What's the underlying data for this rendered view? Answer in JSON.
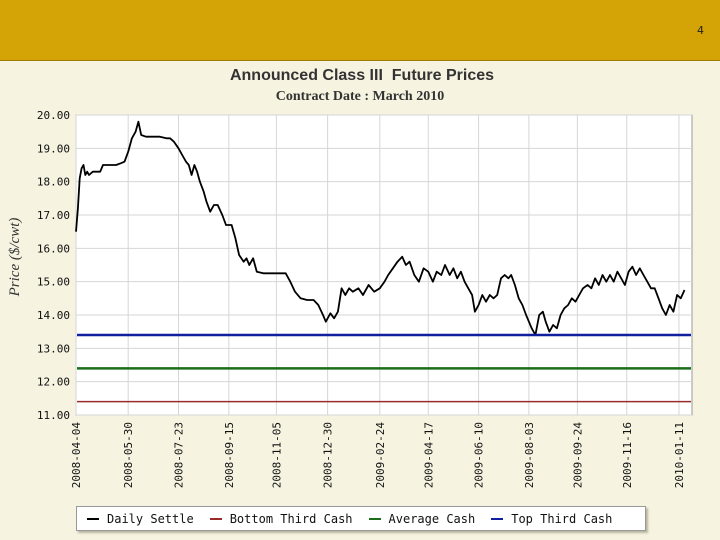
{
  "page": {
    "number": "4",
    "header_color": "#d4a406",
    "panel_color": "#f6f3e0"
  },
  "chart_data": {
    "type": "line",
    "title": "Announced Class III  Future Prices",
    "subtitle": "Contract Date : March 2010",
    "ylabel": "Price ($/cwt)",
    "xlabel": "",
    "ylim": [
      11.0,
      20.0
    ],
    "xlim": [
      "2008-04-04",
      "2010-01-25"
    ],
    "y_ticks": [
      "20.00",
      "19.00",
      "18.00",
      "17.00",
      "16.00",
      "15.00",
      "14.00",
      "13.00",
      "12.00",
      "11.00"
    ],
    "x_ticks": [
      "2008-04-04",
      "2008-05-30",
      "2008-07-23",
      "2008-09-15",
      "2008-11-05",
      "2008-12-30",
      "2009-02-24",
      "2009-04-17",
      "2009-06-10",
      "2009-08-03",
      "2009-09-24",
      "2009-11-16",
      "2010-01-11"
    ],
    "grid": true,
    "legend_position": "bottom",
    "series": [
      {
        "name": "Daily Settle",
        "color": "#000000",
        "style": "line",
        "points": [
          [
            "2008-04-04",
            16.5
          ],
          [
            "2008-04-06",
            17.2
          ],
          [
            "2008-04-08",
            18.1
          ],
          [
            "2008-04-10",
            18.4
          ],
          [
            "2008-04-12",
            18.5
          ],
          [
            "2008-04-14",
            18.2
          ],
          [
            "2008-04-16",
            18.3
          ],
          [
            "2008-04-18",
            18.2
          ],
          [
            "2008-04-22",
            18.3
          ],
          [
            "2008-04-30",
            18.3
          ],
          [
            "2008-05-03",
            18.5
          ],
          [
            "2008-05-10",
            18.5
          ],
          [
            "2008-05-17",
            18.5
          ],
          [
            "2008-05-22",
            18.55
          ],
          [
            "2008-05-26",
            18.6
          ],
          [
            "2008-05-30",
            18.9
          ],
          [
            "2008-06-03",
            19.3
          ],
          [
            "2008-06-07",
            19.5
          ],
          [
            "2008-06-10",
            19.8
          ],
          [
            "2008-06-13",
            19.4
          ],
          [
            "2008-06-18",
            19.35
          ],
          [
            "2008-06-25",
            19.35
          ],
          [
            "2008-07-03",
            19.35
          ],
          [
            "2008-07-10",
            19.3
          ],
          [
            "2008-07-14",
            19.3
          ],
          [
            "2008-07-18",
            19.2
          ],
          [
            "2008-07-23",
            19.0
          ],
          [
            "2008-07-27",
            18.8
          ],
          [
            "2008-07-31",
            18.6
          ],
          [
            "2008-08-03",
            18.5
          ],
          [
            "2008-08-06",
            18.2
          ],
          [
            "2008-08-09",
            18.5
          ],
          [
            "2008-08-12",
            18.3
          ],
          [
            "2008-08-15",
            18.0
          ],
          [
            "2008-08-19",
            17.7
          ],
          [
            "2008-08-22",
            17.4
          ],
          [
            "2008-08-26",
            17.1
          ],
          [
            "2008-08-30",
            17.3
          ],
          [
            "2008-09-03",
            17.3
          ],
          [
            "2008-09-08",
            17.0
          ],
          [
            "2008-09-12",
            16.7
          ],
          [
            "2008-09-18",
            16.7
          ],
          [
            "2008-09-22",
            16.3
          ],
          [
            "2008-09-26",
            15.8
          ],
          [
            "2008-10-01",
            15.6
          ],
          [
            "2008-10-04",
            15.7
          ],
          [
            "2008-10-07",
            15.5
          ],
          [
            "2008-10-11",
            15.7
          ],
          [
            "2008-10-15",
            15.3
          ],
          [
            "2008-10-22",
            15.25
          ],
          [
            "2008-10-30",
            15.25
          ],
          [
            "2008-11-08",
            15.25
          ],
          [
            "2008-11-15",
            15.25
          ],
          [
            "2008-11-20",
            15.0
          ],
          [
            "2008-11-25",
            14.7
          ],
          [
            "2008-12-01",
            14.5
          ],
          [
            "2008-12-08",
            14.45
          ],
          [
            "2008-12-15",
            14.45
          ],
          [
            "2008-12-20",
            14.3
          ],
          [
            "2008-12-25",
            14.0
          ],
          [
            "2008-12-28",
            13.8
          ],
          [
            "2009-01-02",
            14.05
          ],
          [
            "2009-01-06",
            13.9
          ],
          [
            "2009-01-10",
            14.1
          ],
          [
            "2009-01-14",
            14.8
          ],
          [
            "2009-01-18",
            14.6
          ],
          [
            "2009-01-22",
            14.8
          ],
          [
            "2009-01-26",
            14.7
          ],
          [
            "2009-02-01",
            14.8
          ],
          [
            "2009-02-06",
            14.6
          ],
          [
            "2009-02-12",
            14.9
          ],
          [
            "2009-02-18",
            14.7
          ],
          [
            "2009-02-24",
            14.8
          ],
          [
            "2009-03-01",
            15.0
          ],
          [
            "2009-03-05",
            15.2
          ],
          [
            "2009-03-10",
            15.4
          ],
          [
            "2009-03-15",
            15.6
          ],
          [
            "2009-03-20",
            15.75
          ],
          [
            "2009-03-24",
            15.5
          ],
          [
            "2009-03-28",
            15.6
          ],
          [
            "2009-04-02",
            15.2
          ],
          [
            "2009-04-07",
            15.0
          ],
          [
            "2009-04-12",
            15.4
          ],
          [
            "2009-04-17",
            15.3
          ],
          [
            "2009-04-22",
            15.0
          ],
          [
            "2009-04-26",
            15.3
          ],
          [
            "2009-05-01",
            15.2
          ],
          [
            "2009-05-05",
            15.5
          ],
          [
            "2009-05-10",
            15.2
          ],
          [
            "2009-05-14",
            15.4
          ],
          [
            "2009-05-18",
            15.1
          ],
          [
            "2009-05-22",
            15.3
          ],
          [
            "2009-05-26",
            15.0
          ],
          [
            "2009-05-30",
            14.8
          ],
          [
            "2009-06-03",
            14.6
          ],
          [
            "2009-06-06",
            14.1
          ],
          [
            "2009-06-10",
            14.3
          ],
          [
            "2009-06-14",
            14.6
          ],
          [
            "2009-06-18",
            14.4
          ],
          [
            "2009-06-22",
            14.6
          ],
          [
            "2009-06-26",
            14.5
          ],
          [
            "2009-06-30",
            14.6
          ],
          [
            "2009-07-04",
            15.1
          ],
          [
            "2009-07-08",
            15.2
          ],
          [
            "2009-07-12",
            15.1
          ],
          [
            "2009-07-15",
            15.2
          ],
          [
            "2009-07-19",
            14.9
          ],
          [
            "2009-07-23",
            14.5
          ],
          [
            "2009-07-27",
            14.3
          ],
          [
            "2009-07-31",
            14.0
          ],
          [
            "2009-08-03",
            13.8
          ],
          [
            "2009-08-06",
            13.6
          ],
          [
            "2009-08-10",
            13.4
          ],
          [
            "2009-08-14",
            14.0
          ],
          [
            "2009-08-18",
            14.1
          ],
          [
            "2009-08-21",
            13.8
          ],
          [
            "2009-08-25",
            13.5
          ],
          [
            "2009-08-29",
            13.7
          ],
          [
            "2009-09-02",
            13.6
          ],
          [
            "2009-09-06",
            14.0
          ],
          [
            "2009-09-10",
            14.2
          ],
          [
            "2009-09-14",
            14.3
          ],
          [
            "2009-09-18",
            14.5
          ],
          [
            "2009-09-22",
            14.4
          ],
          [
            "2009-09-26",
            14.6
          ],
          [
            "2009-09-30",
            14.8
          ],
          [
            "2009-10-05",
            14.9
          ],
          [
            "2009-10-09",
            14.8
          ],
          [
            "2009-10-13",
            15.1
          ],
          [
            "2009-10-17",
            14.9
          ],
          [
            "2009-10-21",
            15.2
          ],
          [
            "2009-10-25",
            15.0
          ],
          [
            "2009-10-29",
            15.2
          ],
          [
            "2009-11-02",
            15.0
          ],
          [
            "2009-11-06",
            15.3
          ],
          [
            "2009-11-10",
            15.1
          ],
          [
            "2009-11-14",
            14.9
          ],
          [
            "2009-11-18",
            15.3
          ],
          [
            "2009-11-22",
            15.45
          ],
          [
            "2009-11-26",
            15.2
          ],
          [
            "2009-11-30",
            15.4
          ],
          [
            "2009-12-04",
            15.2
          ],
          [
            "2009-12-08",
            15.0
          ],
          [
            "2009-12-12",
            14.8
          ],
          [
            "2009-12-16",
            14.8
          ],
          [
            "2009-12-20",
            14.5
          ],
          [
            "2009-12-24",
            14.2
          ],
          [
            "2009-12-28",
            14.0
          ],
          [
            "2010-01-01",
            14.3
          ],
          [
            "2010-01-05",
            14.1
          ],
          [
            "2010-01-09",
            14.6
          ],
          [
            "2010-01-13",
            14.5
          ],
          [
            "2010-01-17",
            14.75
          ]
        ]
      },
      {
        "name": "Bottom Third Cash",
        "color": "#9b2b2b",
        "style": "hline",
        "value": 11.4
      },
      {
        "name": "Average Cash",
        "color": "#1a6e1a",
        "style": "hline",
        "value": 12.4
      },
      {
        "name": "Top Third Cash",
        "color": "#101ea0",
        "style": "hline",
        "value": 13.4
      }
    ]
  }
}
